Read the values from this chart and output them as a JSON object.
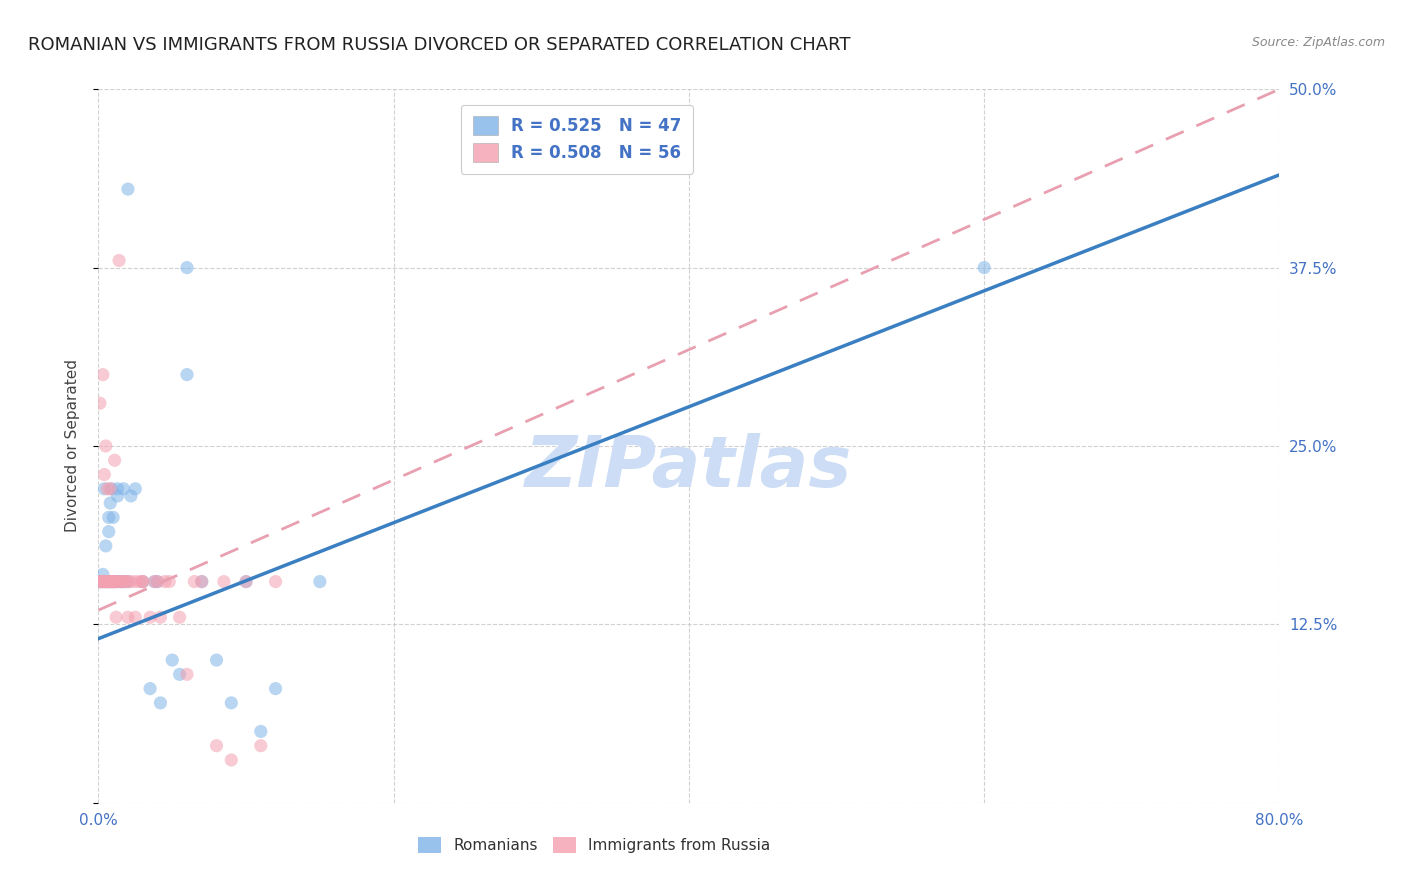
{
  "title": "ROMANIAN VS IMMIGRANTS FROM RUSSIA DIVORCED OR SEPARATED CORRELATION CHART",
  "source": "Source: ZipAtlas.com",
  "ylabel": "Divorced or Separated",
  "xlim": [
    0.0,
    0.8
  ],
  "ylim": [
    0.0,
    0.5
  ],
  "xticks": [
    0.0,
    0.2,
    0.4,
    0.6,
    0.8
  ],
  "yticks": [
    0.0,
    0.125,
    0.25,
    0.375,
    0.5
  ],
  "xticklabels": [
    "0.0%",
    "",
    "",
    "",
    "80.0%"
  ],
  "yticklabels": [
    "",
    "12.5%",
    "25.0%",
    "37.5%",
    "50.0%"
  ],
  "watermark": "ZIPatlas",
  "romanian_scatter": [
    [
      0.001,
      0.155
    ],
    [
      0.002,
      0.155
    ],
    [
      0.003,
      0.155
    ],
    [
      0.003,
      0.16
    ],
    [
      0.004,
      0.22
    ],
    [
      0.005,
      0.18
    ],
    [
      0.005,
      0.155
    ],
    [
      0.006,
      0.155
    ],
    [
      0.006,
      0.155
    ],
    [
      0.007,
      0.19
    ],
    [
      0.007,
      0.2
    ],
    [
      0.008,
      0.155
    ],
    [
      0.008,
      0.21
    ],
    [
      0.009,
      0.155
    ],
    [
      0.009,
      0.22
    ],
    [
      0.01,
      0.155
    ],
    [
      0.01,
      0.2
    ],
    [
      0.011,
      0.155
    ],
    [
      0.012,
      0.155
    ],
    [
      0.013,
      0.22
    ],
    [
      0.013,
      0.215
    ],
    [
      0.014,
      0.155
    ],
    [
      0.015,
      0.155
    ],
    [
      0.016,
      0.155
    ],
    [
      0.017,
      0.22
    ],
    [
      0.018,
      0.155
    ],
    [
      0.02,
      0.155
    ],
    [
      0.022,
      0.215
    ],
    [
      0.025,
      0.22
    ],
    [
      0.03,
      0.155
    ],
    [
      0.035,
      0.08
    ],
    [
      0.038,
      0.155
    ],
    [
      0.04,
      0.155
    ],
    [
      0.042,
      0.07
    ],
    [
      0.05,
      0.1
    ],
    [
      0.055,
      0.09
    ],
    [
      0.06,
      0.3
    ],
    [
      0.07,
      0.155
    ],
    [
      0.08,
      0.1
    ],
    [
      0.09,
      0.07
    ],
    [
      0.1,
      0.155
    ],
    [
      0.11,
      0.05
    ],
    [
      0.12,
      0.08
    ],
    [
      0.15,
      0.155
    ],
    [
      0.06,
      0.375
    ],
    [
      0.6,
      0.375
    ],
    [
      0.02,
      0.43
    ]
  ],
  "russia_scatter": [
    [
      0.001,
      0.155
    ],
    [
      0.001,
      0.28
    ],
    [
      0.002,
      0.155
    ],
    [
      0.002,
      0.155
    ],
    [
      0.003,
      0.3
    ],
    [
      0.003,
      0.155
    ],
    [
      0.004,
      0.155
    ],
    [
      0.004,
      0.23
    ],
    [
      0.005,
      0.155
    ],
    [
      0.005,
      0.25
    ],
    [
      0.006,
      0.155
    ],
    [
      0.006,
      0.22
    ],
    [
      0.007,
      0.155
    ],
    [
      0.007,
      0.155
    ],
    [
      0.008,
      0.155
    ],
    [
      0.008,
      0.22
    ],
    [
      0.009,
      0.155
    ],
    [
      0.009,
      0.155
    ],
    [
      0.01,
      0.155
    ],
    [
      0.01,
      0.155
    ],
    [
      0.011,
      0.155
    ],
    [
      0.011,
      0.24
    ],
    [
      0.012,
      0.155
    ],
    [
      0.012,
      0.13
    ],
    [
      0.013,
      0.155
    ],
    [
      0.014,
      0.38
    ],
    [
      0.015,
      0.155
    ],
    [
      0.016,
      0.155
    ],
    [
      0.017,
      0.155
    ],
    [
      0.018,
      0.155
    ],
    [
      0.02,
      0.155
    ],
    [
      0.02,
      0.13
    ],
    [
      0.022,
      0.155
    ],
    [
      0.025,
      0.155
    ],
    [
      0.025,
      0.13
    ],
    [
      0.028,
      0.155
    ],
    [
      0.03,
      0.155
    ],
    [
      0.03,
      0.155
    ],
    [
      0.035,
      0.13
    ],
    [
      0.038,
      0.155
    ],
    [
      0.04,
      0.155
    ],
    [
      0.042,
      0.13
    ],
    [
      0.045,
      0.155
    ],
    [
      0.048,
      0.155
    ],
    [
      0.055,
      0.13
    ],
    [
      0.06,
      0.09
    ],
    [
      0.065,
      0.155
    ],
    [
      0.07,
      0.155
    ],
    [
      0.08,
      0.04
    ],
    [
      0.085,
      0.155
    ],
    [
      0.09,
      0.03
    ],
    [
      0.1,
      0.155
    ],
    [
      0.11,
      0.04
    ],
    [
      0.12,
      0.155
    ],
    [
      0.003,
      0.155
    ],
    [
      0.005,
      0.155
    ]
  ],
  "romanian_line": {
    "x0": 0.0,
    "y0": 0.115,
    "x1": 0.8,
    "y1": 0.44
  },
  "russia_line": {
    "x0": 0.0,
    "y0": 0.135,
    "x1": 0.8,
    "y1": 0.5
  },
  "romanian_line_color": "#3a7fc1",
  "russia_line_color": "#e8a0b0",
  "grid_color": "#cccccc",
  "background_color": "#ffffff",
  "title_fontsize": 13,
  "axis_label_fontsize": 11,
  "tick_fontsize": 11,
  "tick_color": "#4472c4",
  "watermark_color": "#ccddf5",
  "watermark_fontsize": 52,
  "scatter_alpha": 0.55,
  "scatter_size": 90,
  "legend_color_ro": "#7eb3e8",
  "legend_color_ru": "#f4a0b0"
}
